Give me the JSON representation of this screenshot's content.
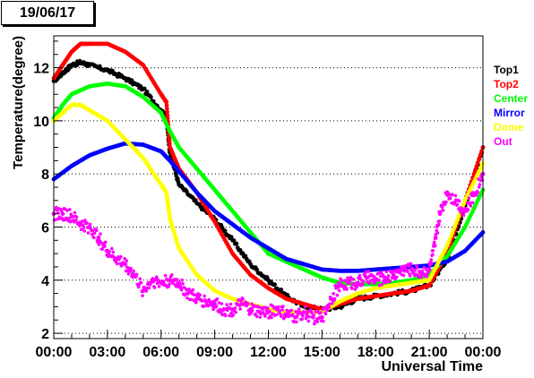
{
  "date_label": "19/06/17",
  "chart_data": {
    "type": "scatter",
    "xlabel": "Universal Time",
    "ylabel": "Temperature(degree)",
    "xlim": [
      0,
      24
    ],
    "ylim": [
      1.8,
      13.2
    ],
    "x_ticks": [
      "00:00",
      "03:00",
      "06:00",
      "09:00",
      "12:00",
      "15:00",
      "18:00",
      "21:00",
      "00:00"
    ],
    "y_ticks": [
      2,
      4,
      6,
      8,
      10,
      12
    ],
    "grid": "y-dotted",
    "legend_position": "right",
    "series": [
      {
        "name": "Top1",
        "color": "#000000",
        "x": [
          0,
          0.5,
          1,
          1.5,
          2,
          3,
          4,
          5,
          6,
          6.3,
          6.5,
          7,
          8,
          9,
          10,
          11,
          12,
          13,
          14,
          15,
          16,
          17,
          18,
          19,
          20,
          21,
          22,
          23,
          24
        ],
        "y": [
          11.5,
          11.8,
          12.1,
          12.2,
          12.1,
          11.9,
          11.6,
          11.2,
          10.4,
          10.1,
          8.8,
          7.6,
          6.9,
          6.3,
          5.5,
          4.6,
          4.0,
          3.4,
          3.0,
          2.9,
          3.0,
          3.3,
          3.4,
          3.5,
          3.6,
          3.8,
          4.8,
          6.8,
          9.0
        ]
      },
      {
        "name": "Top2",
        "color": "#ff0000",
        "x": [
          0,
          0.5,
          1,
          1.5,
          2,
          3,
          4,
          5,
          6,
          6.3,
          6.5,
          7,
          8,
          9,
          10,
          11,
          12,
          13,
          14,
          15,
          16,
          17,
          18,
          19,
          20,
          21,
          22,
          23,
          24
        ],
        "y": [
          11.6,
          12.1,
          12.6,
          12.9,
          12.9,
          12.9,
          12.6,
          12.1,
          11.0,
          10.7,
          9.0,
          8.2,
          7.3,
          6.2,
          5.0,
          4.2,
          3.7,
          3.3,
          3.1,
          2.9,
          3.1,
          3.3,
          3.4,
          3.5,
          3.6,
          3.8,
          5.0,
          7.0,
          9.0
        ]
      },
      {
        "name": "Center",
        "color": "#00ff00",
        "x": [
          0,
          0.5,
          1,
          2,
          3,
          4,
          5,
          6,
          6.5,
          7,
          8,
          9,
          10,
          11,
          12,
          13,
          14,
          15,
          16,
          17,
          18,
          19,
          20,
          21,
          22,
          23,
          24
        ],
        "y": [
          10.1,
          10.6,
          11.0,
          11.3,
          11.4,
          11.3,
          10.9,
          10.3,
          9.6,
          9.0,
          8.2,
          7.4,
          6.6,
          5.8,
          5.0,
          4.7,
          4.4,
          4.1,
          3.9,
          3.85,
          3.85,
          3.9,
          4.0,
          4.2,
          4.9,
          6.0,
          7.4
        ]
      },
      {
        "name": "Mirror",
        "color": "#0000ff",
        "x": [
          0,
          1,
          2,
          3,
          4,
          5,
          6,
          6.5,
          7,
          8,
          9,
          10,
          11,
          12,
          13,
          14,
          15,
          16,
          17,
          18,
          19,
          20,
          21,
          22,
          23,
          24
        ],
        "y": [
          7.8,
          8.3,
          8.7,
          8.95,
          9.15,
          9.1,
          8.85,
          8.5,
          8.1,
          7.3,
          6.6,
          6.1,
          5.6,
          5.2,
          4.8,
          4.6,
          4.4,
          4.35,
          4.35,
          4.4,
          4.45,
          4.5,
          4.55,
          4.7,
          5.1,
          5.8
        ]
      },
      {
        "name": "Dome",
        "color": "#ffff00",
        "x": [
          0,
          0.5,
          1,
          1.5,
          2,
          3,
          4,
          5,
          6,
          6.3,
          6.5,
          7,
          8,
          9,
          10,
          11,
          12,
          13,
          14,
          15,
          16,
          17,
          18,
          19,
          20,
          21,
          22,
          23,
          24
        ],
        "y": [
          10.0,
          10.3,
          10.6,
          10.6,
          10.4,
          10.0,
          9.3,
          8.6,
          7.6,
          7.3,
          6.3,
          5.2,
          4.2,
          3.6,
          3.3,
          3.1,
          2.9,
          2.8,
          2.8,
          2.8,
          3.2,
          3.5,
          3.7,
          3.8,
          3.9,
          4.0,
          5.3,
          7.0,
          8.4
        ]
      },
      {
        "name": "Out",
        "color": "#ff00ff",
        "x": [
          0,
          0.5,
          1,
          1.5,
          2,
          2.5,
          3,
          3.5,
          4,
          4.5,
          5,
          5.5,
          6,
          6.5,
          7,
          7.5,
          8,
          8.5,
          9,
          9.5,
          10,
          10.5,
          11,
          11.5,
          12,
          12.5,
          13,
          13.5,
          14,
          14.5,
          15,
          15.5,
          16,
          16.5,
          17,
          17.5,
          18,
          18.5,
          19,
          19.5,
          20,
          20.5,
          21,
          21.3,
          21.6,
          22,
          22.5,
          23,
          23.5,
          24
        ],
        "y": [
          6.5,
          6.5,
          6.4,
          6.1,
          6.0,
          5.6,
          5.1,
          4.8,
          4.6,
          4.2,
          3.6,
          4.0,
          3.9,
          4.0,
          3.9,
          3.5,
          3.3,
          3.2,
          3.1,
          2.9,
          2.9,
          3.1,
          2.9,
          2.8,
          2.8,
          2.9,
          2.7,
          2.6,
          2.8,
          2.6,
          2.6,
          3.3,
          3.8,
          3.9,
          3.9,
          4.1,
          4.0,
          4.1,
          4.2,
          4.4,
          4.4,
          4.3,
          4.4,
          5.3,
          6.5,
          7.3,
          7.0,
          6.6,
          7.2,
          8.0
        ]
      }
    ]
  }
}
